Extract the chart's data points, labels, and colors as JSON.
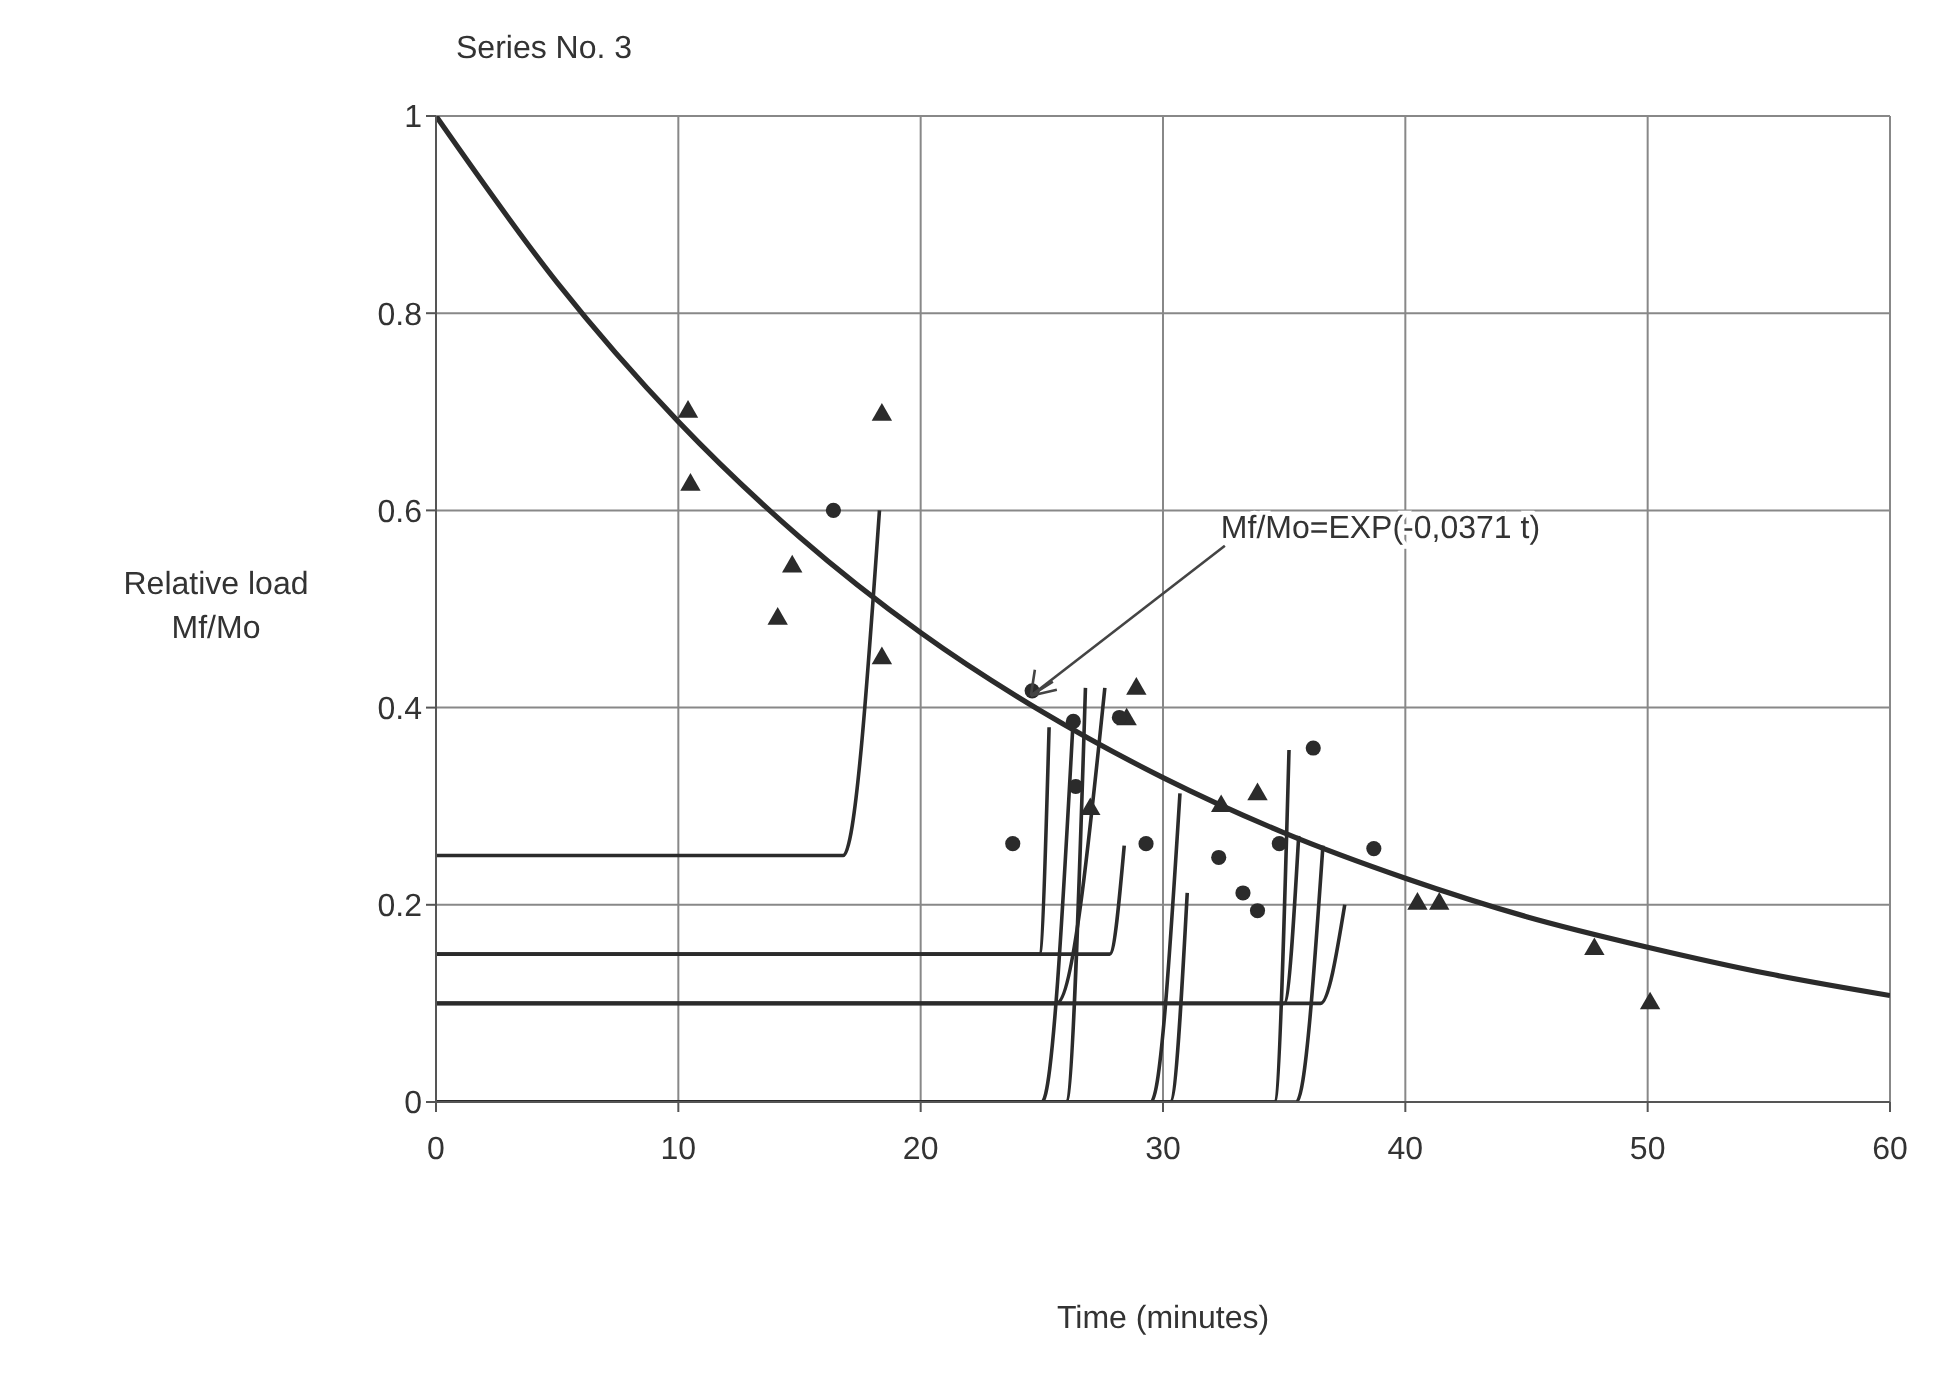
{
  "chart_data": {
    "type": "line",
    "title": "Series No. 3",
    "xlabel": "Time (minutes)",
    "ylabel": "Relative load Mf/Mo",
    "annotations": [
      {
        "text": "Mf/Mo=EXP(-0,0371 t)",
        "x": 24.3,
        "y": 0.406
      }
    ],
    "xlim": [
      0,
      60
    ],
    "xticks": [
      0,
      10,
      20,
      30,
      40,
      50,
      60
    ],
    "ylim": [
      0,
      1
    ],
    "yticks": [
      0,
      0.2,
      0.4,
      0.6,
      0.8,
      1
    ],
    "grid": true,
    "line_style": "solid",
    "series": [
      {
        "type": "line",
        "color": "#2b2b2b",
        "marker": "none",
        "x": [
          0,
          5,
          10,
          15,
          20,
          25,
          30,
          35,
          40,
          45,
          50,
          55,
          60
        ],
        "values": [
          1,
          0.831,
          0.69,
          0.573,
          0.476,
          0.396,
          0.329,
          0.273,
          0.227,
          0.188,
          0.157,
          0.13,
          0.108
        ]
      },
      {
        "type": "scatter",
        "color": "#2b2b2b",
        "marker": "triangle",
        "x": [
          10.4,
          10.5,
          18.4,
          14.7,
          14.1,
          18.4,
          28.9,
          28.5,
          27.0,
          33.9,
          32.4,
          40.5,
          41.4,
          47.8,
          50.1
        ],
        "values": [
          0.7,
          0.626,
          0.697,
          0.543,
          0.49,
          0.45,
          0.419,
          0.388,
          0.297,
          0.312,
          0.3,
          0.201,
          0.201,
          0.155,
          0.1
        ]
      },
      {
        "type": "scatter",
        "color": "#2b2b2b",
        "marker": "circle",
        "x": [
          16.4,
          23.8,
          24.6,
          26.3,
          28.2,
          26.4,
          29.3,
          36.2,
          32.3,
          33.3,
          33.9,
          38.7,
          34.8
        ],
        "values": [
          0.6,
          0.262,
          0.417,
          0.386,
          0.39,
          0.32,
          0.262,
          0.359,
          0.248,
          0.212,
          0.194,
          0.257,
          0.262
        ]
      },
      {
        "type": "line",
        "color": "#2b2b2b",
        "marker": "none",
        "x": [
          0,
          16.8,
          18.3
        ],
        "values": [
          0.25,
          0.25,
          0.6
        ]
      },
      {
        "type": "line",
        "color": "#2b2b2b",
        "marker": "none",
        "x": [
          0,
          24.9,
          25.3
        ],
        "values": [
          0.15,
          0.15,
          0.38
        ]
      },
      {
        "type": "line",
        "color": "#2b2b2b",
        "marker": "none",
        "x": [
          0,
          27.8,
          28.4
        ],
        "values": [
          0.15,
          0.15,
          0.26
        ]
      },
      {
        "type": "line",
        "color": "#2b2b2b",
        "marker": "none",
        "x": [
          0,
          25.6,
          27.6
        ],
        "values": [
          0.1,
          0.1,
          0.42
        ]
      },
      {
        "type": "line",
        "color": "#2b2b2b",
        "marker": "none",
        "x": [
          0,
          36.5,
          37.5
        ],
        "values": [
          0.1,
          0.1,
          0.2
        ]
      },
      {
        "type": "line",
        "color": "#2b2b2b",
        "marker": "none",
        "x": [
          0,
          35.0,
          35.6
        ],
        "values": [
          0.1,
          0.1,
          0.27
        ]
      },
      {
        "type": "line",
        "color": "#2b2b2b",
        "marker": "none",
        "x": [
          0,
          25.0,
          26.3
        ],
        "values": [
          0,
          0,
          0.39
        ]
      },
      {
        "type": "line",
        "color": "#2b2b2b",
        "marker": "none",
        "x": [
          0,
          26.0,
          26.8
        ],
        "values": [
          0,
          0,
          0.42
        ]
      },
      {
        "type": "line",
        "color": "#2b2b2b",
        "marker": "none",
        "x": [
          0,
          29.5,
          30.7
        ],
        "values": [
          0,
          0,
          0.313
        ]
      },
      {
        "type": "line",
        "color": "#2b2b2b",
        "marker": "none",
        "x": [
          0,
          30.3,
          31.0
        ],
        "values": [
          0,
          0,
          0.212
        ]
      },
      {
        "type": "line",
        "color": "#2b2b2b",
        "marker": "none",
        "x": [
          0,
          34.6,
          35.2
        ],
        "values": [
          0,
          0,
          0.357
        ]
      },
      {
        "type": "line",
        "color": "#2b2b2b",
        "marker": "none",
        "x": [
          0,
          35.5,
          36.6
        ],
        "values": [
          0,
          0,
          0.26
        ]
      }
    ]
  }
}
